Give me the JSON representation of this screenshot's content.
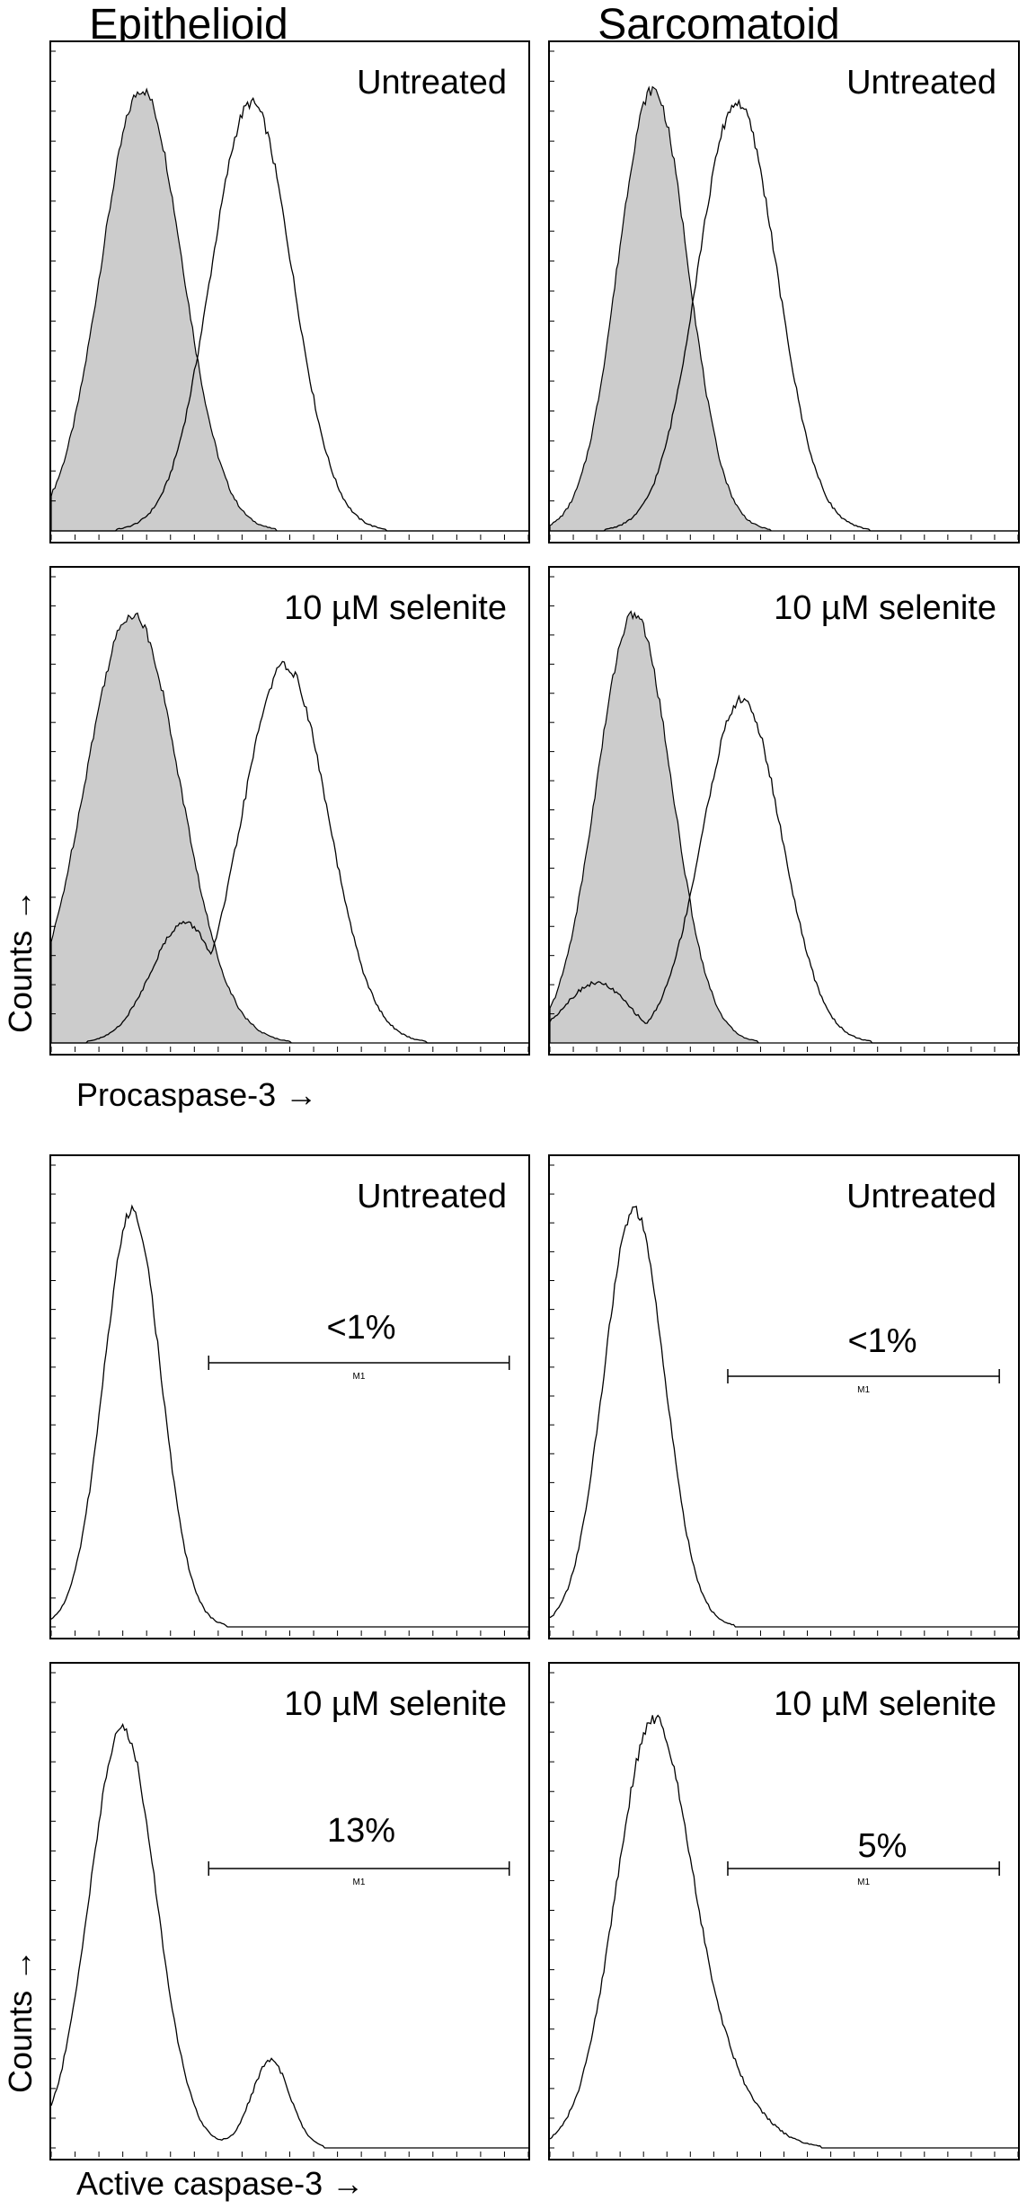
{
  "column_titles": [
    "Epithelioid",
    "Sarcomatoid"
  ],
  "axis_labels": {
    "y_top": "Counts →",
    "x_top": "Procaspase-3 →",
    "y_bottom": "Counts →",
    "x_bottom": "Active caspase-3 →"
  },
  "colors": {
    "control_fill": "#cccccc",
    "line": "#000000"
  },
  "chart_data": [
    {
      "type": "area",
      "id": "epi-untreated-procasp",
      "column": "Epithelioid",
      "condition": "Untreated",
      "xlabel": "Procaspase-3",
      "ylabel": "Counts",
      "series": [
        {
          "role": "control-shaded",
          "peak_x": 0.19,
          "peak_height": 1.0,
          "width": 0.085,
          "floor": 0.02
        },
        {
          "role": "stained-outline",
          "peak_x": 0.42,
          "peak_height": 0.97,
          "width": 0.085,
          "floor": 0.0
        }
      ]
    },
    {
      "type": "area",
      "id": "sar-untreated-procasp",
      "column": "Sarcomatoid",
      "condition": "Untreated",
      "xlabel": "Procaspase-3",
      "ylabel": "Counts",
      "series": [
        {
          "role": "control-shaded",
          "peak_x": 0.22,
          "peak_height": 1.0,
          "width": 0.075,
          "floor": 0.04
        },
        {
          "role": "stained-outline",
          "peak_x": 0.4,
          "peak_height": 0.97,
          "width": 0.085,
          "floor": 0.02
        }
      ]
    },
    {
      "type": "area",
      "id": "epi-selenite-procasp",
      "column": "Epithelioid",
      "condition": "10 µM selenite",
      "xlabel": "Procaspase-3",
      "ylabel": "Counts",
      "series": [
        {
          "role": "control-shaded",
          "peak_x": 0.17,
          "peak_height": 1.0,
          "width": 0.1,
          "floor": 0.02
        },
        {
          "role": "stained-outline",
          "peak_x": 0.49,
          "peak_height": 0.88,
          "width": 0.09,
          "floor": 0.02,
          "shoulder_x": 0.28,
          "shoulder_height": 0.28
        }
      ]
    },
    {
      "type": "area",
      "id": "sar-selenite-procasp",
      "column": "Sarcomatoid",
      "condition": "10 µM selenite",
      "xlabel": "Procaspase-3",
      "ylabel": "Counts",
      "series": [
        {
          "role": "control-shaded",
          "peak_x": 0.18,
          "peak_height": 1.0,
          "width": 0.08,
          "floor": 0.02
        },
        {
          "role": "stained-outline",
          "peak_x": 0.41,
          "peak_height": 0.8,
          "width": 0.085,
          "floor": 0.02,
          "shoulder_x": 0.1,
          "shoulder_height": 0.14
        }
      ]
    },
    {
      "type": "line",
      "id": "epi-untreated-active",
      "column": "Epithelioid",
      "condition": "Untreated",
      "xlabel": "Active caspase-3",
      "ylabel": "Counts",
      "gate": {
        "label": "M1",
        "percent": "<1%",
        "x_from": 0.33,
        "x_to": 0.96
      },
      "series": [
        {
          "role": "stained-outline",
          "peak_x": 0.17,
          "peak_height": 0.98,
          "width": 0.06,
          "floor": 0.02
        }
      ]
    },
    {
      "type": "line",
      "id": "sar-untreated-active",
      "column": "Sarcomatoid",
      "condition": "Untreated",
      "xlabel": "Active caspase-3",
      "ylabel": "Counts",
      "gate": {
        "label": "M1",
        "percent": "<1%",
        "x_from": 0.38,
        "x_to": 0.96
      },
      "series": [
        {
          "role": "stained-outline",
          "peak_x": 0.18,
          "peak_height": 0.98,
          "width": 0.065,
          "floor": 0.02
        }
      ]
    },
    {
      "type": "line",
      "id": "epi-selenite-active",
      "column": "Epithelioid",
      "condition": "10 µM selenite",
      "xlabel": "Active caspase-3",
      "ylabel": "Counts",
      "gate": {
        "label": "M1",
        "percent": "13%",
        "x_from": 0.33,
        "x_to": 0.96
      },
      "series": [
        {
          "role": "stained-outline",
          "peak_x": 0.15,
          "peak_height": 0.96,
          "width": 0.07,
          "floor": 0.02,
          "second_peak_x": 0.46,
          "second_peak_height": 0.2
        }
      ]
    },
    {
      "type": "line",
      "id": "sar-selenite-active",
      "column": "Sarcomatoid",
      "condition": "10 µM selenite",
      "xlabel": "Active caspase-3",
      "ylabel": "Counts",
      "gate": {
        "label": "M1",
        "percent": "5%",
        "x_from": 0.38,
        "x_to": 0.96
      },
      "series": [
        {
          "role": "stained-outline",
          "peak_x": 0.22,
          "peak_height": 0.96,
          "width": 0.08,
          "floor": 0.02,
          "tail": 0.12
        }
      ]
    }
  ]
}
